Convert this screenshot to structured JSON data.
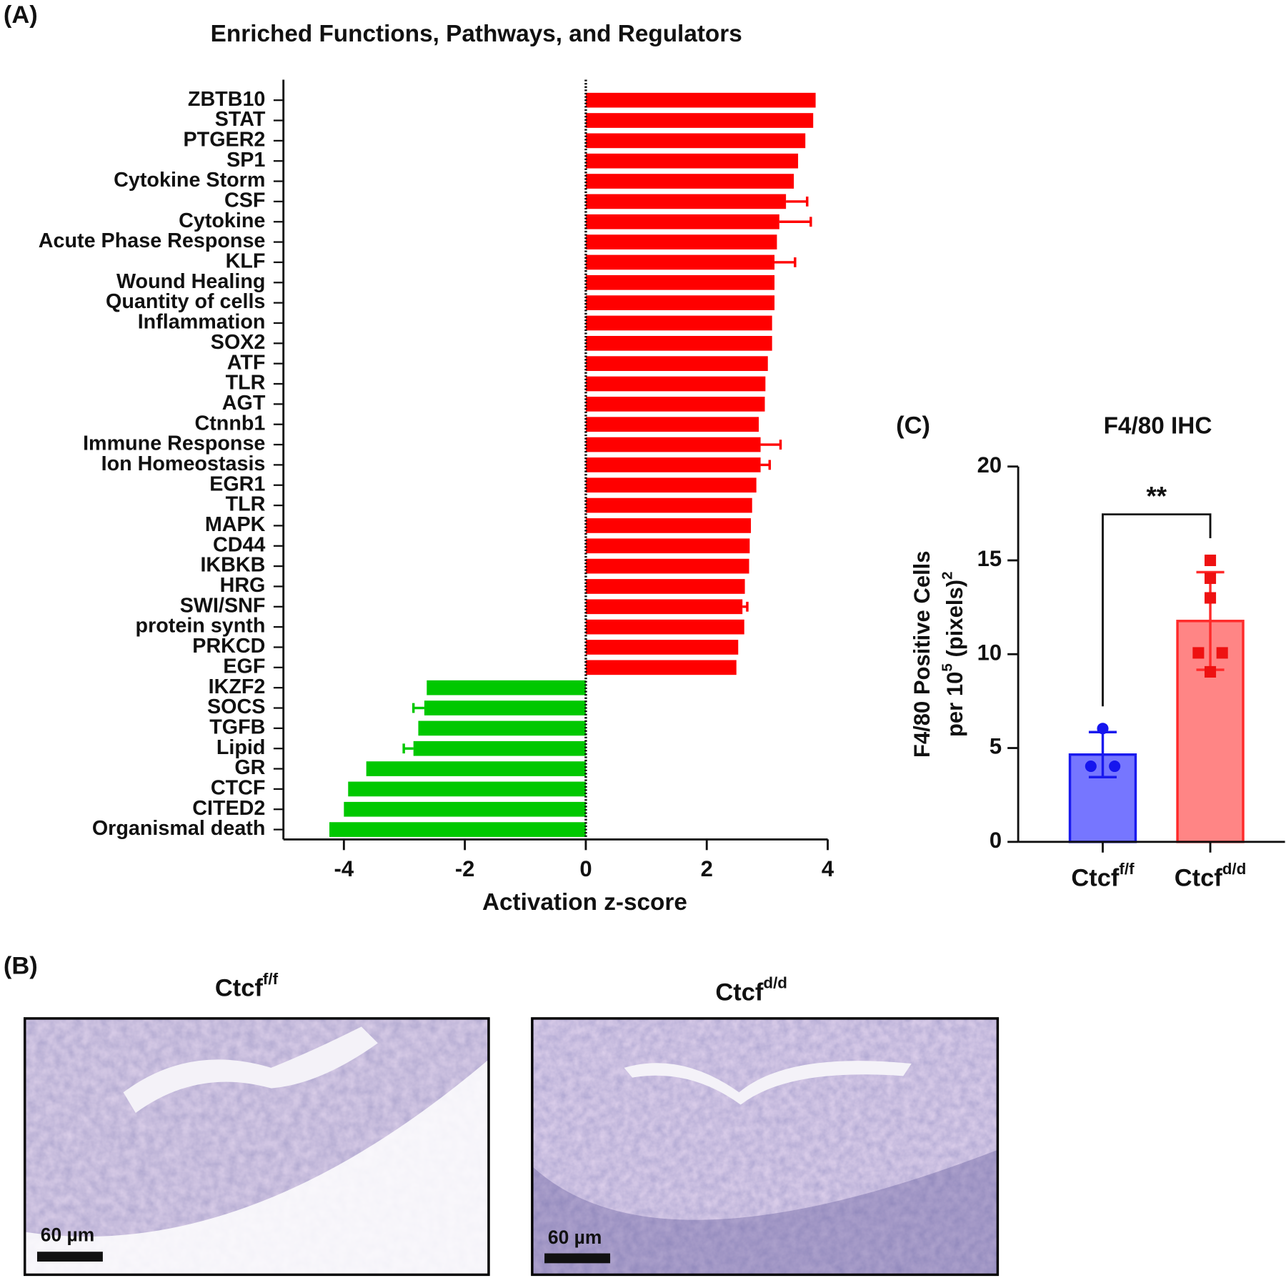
{
  "chart_data": [
    {
      "type": "hbar",
      "label": "(A)",
      "title": "Enriched Functions, Pathways, and Regulators",
      "x_label": "Activation z-score",
      "categories": [
        "ZBTB10",
        "STAT",
        "PTGER2",
        "SP1",
        "Cytokine Storm",
        "CSF",
        "Cytokine",
        "Acute Phase Response",
        "KLF",
        "Wound Healing",
        "Quantity of cells",
        "Inflammation",
        "SOX2",
        "ATF",
        "TLR",
        "AGT",
        "Ctnnb1",
        "Immune Response",
        "Ion Homeostasis",
        "EGR1",
        "TLR",
        "MAPK",
        "CD44",
        "IKBKB",
        "HRG",
        "SWI/SNF",
        "protein synth",
        "PRKCD",
        "EGF",
        "IKZF2",
        "SOCS",
        "TGFB",
        "Lipid",
        "GR",
        "CTCF",
        "CITED2",
        "Organismal death"
      ],
      "values": [
        3.8,
        3.76,
        3.63,
        3.51,
        3.44,
        3.31,
        3.2,
        3.16,
        3.12,
        3.12,
        3.12,
        3.08,
        3.08,
        3.01,
        2.97,
        2.96,
        2.86,
        2.89,
        2.89,
        2.82,
        2.75,
        2.73,
        2.71,
        2.7,
        2.63,
        2.59,
        2.62,
        2.52,
        2.49,
        -2.63,
        -2.67,
        -2.77,
        -2.85,
        -3.63,
        -3.93,
        -4.0,
        -4.24
      ],
      "errors": [
        null,
        null,
        null,
        null,
        null,
        0.35,
        0.52,
        null,
        0.34,
        null,
        null,
        null,
        null,
        null,
        null,
        null,
        null,
        0.33,
        0.15,
        null,
        null,
        null,
        null,
        null,
        null,
        0.08,
        null,
        null,
        null,
        null,
        0.18,
        null,
        0.16,
        null,
        null,
        null,
        null
      ],
      "positive_color": "#ff0000",
      "negative_color": "#00c800",
      "xlim": [
        -5,
        4
      ],
      "xticks": [
        -4,
        -2,
        0,
        2,
        4
      ]
    },
    {
      "type": "bar_scatter",
      "label": "(C)",
      "title": "F4/80 IHC",
      "y_label": [
        [
          "F4/80 Positive Cells"
        ],
        [
          "per 10",
          "5",
          " (pixels)",
          "2"
        ]
      ],
      "categories": [
        "Ctcf",
        "Ctcf"
      ],
      "category_superscripts": [
        "f/f",
        "d/d"
      ],
      "values": [
        4.65,
        11.77
      ],
      "errors": [
        1.2,
        2.6
      ],
      "points": [
        [
          6.04,
          4.03,
          4.03
        ],
        [
          15.0,
          14.05,
          13.0,
          10.07,
          10.07,
          9.06
        ]
      ],
      "fill_colors": [
        "#7676ff",
        "#ff8585"
      ],
      "edge_colors": [
        "#1a1aee",
        "#ff2a2a"
      ],
      "point_colors": [
        "#1515ee",
        "#ee1111"
      ],
      "ylim": [
        0,
        20
      ],
      "yticks": [
        0,
        5,
        10,
        15,
        20
      ],
      "annotation": "**"
    }
  ],
  "figure_b": {
    "label": "(B)",
    "panels": [
      {
        "title": "Ctcf",
        "superscript": "f/f",
        "scale_bar": "60 µm"
      },
      {
        "title": "Ctcf",
        "superscript": "d/d",
        "scale_bar": "60 µm"
      }
    ]
  }
}
